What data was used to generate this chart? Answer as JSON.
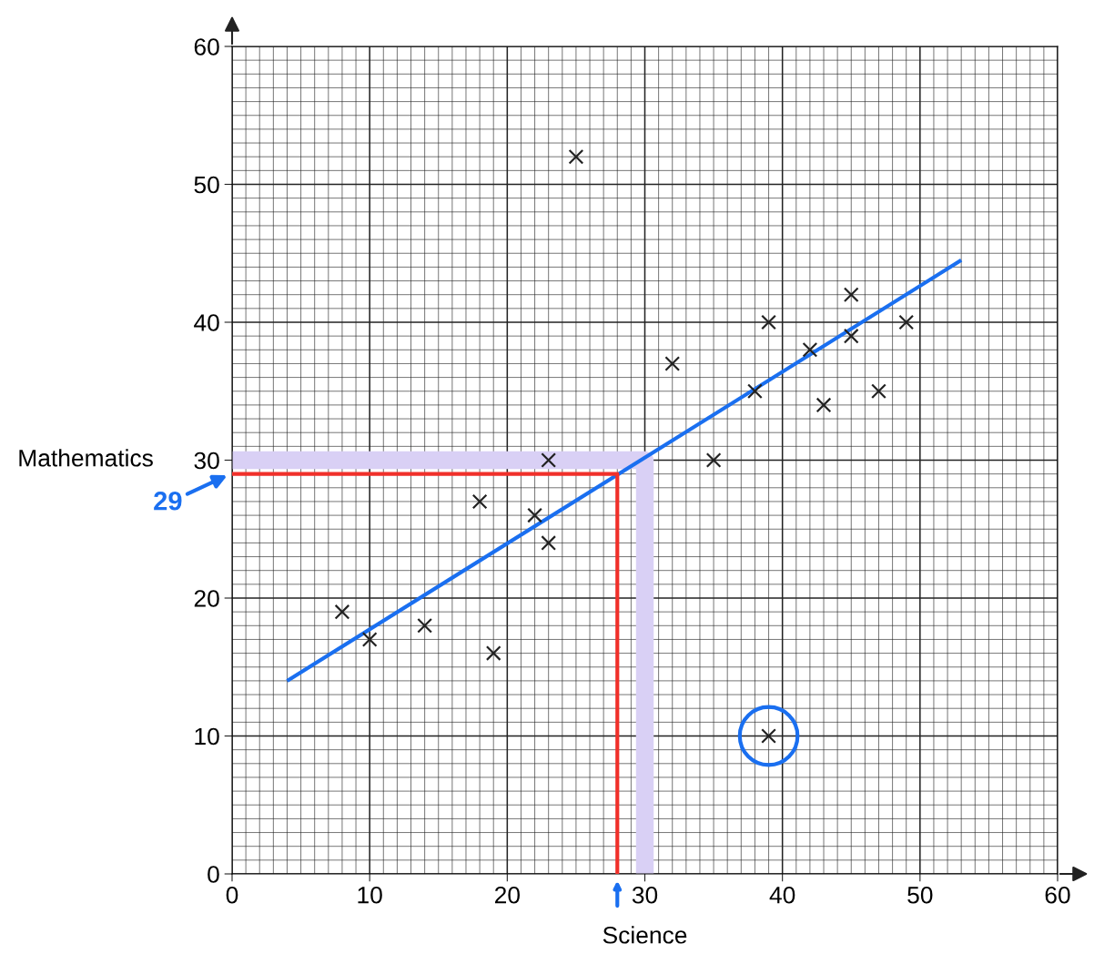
{
  "chart_data": {
    "type": "scatter",
    "xlabel": "Science",
    "ylabel": "Mathematics",
    "xlim": [
      0,
      60
    ],
    "ylim": [
      0,
      60
    ],
    "xticks": [
      0,
      10,
      20,
      30,
      40,
      50,
      60
    ],
    "yticks": [
      0,
      10,
      20,
      30,
      40,
      50,
      60
    ],
    "grid": true,
    "series": [
      {
        "marker": "cross",
        "color": "#222222",
        "x": [
          8,
          10,
          14,
          19,
          18,
          22,
          23,
          23,
          25,
          32,
          35,
          38,
          39,
          39,
          42,
          43,
          45,
          45,
          47,
          49
        ],
        "values": [
          19,
          17,
          18,
          16,
          27,
          26,
          24,
          30,
          52,
          37,
          30,
          35,
          40,
          10,
          38,
          34,
          42,
          39,
          35,
          40
        ]
      },
      {
        "type": "line",
        "color": "#d9d0f5",
        "x": [
          0,
          30,
          30
        ],
        "values": [
          30,
          30,
          0
        ]
      },
      {
        "type": "line",
        "color": "#1a6ff0",
        "x": [
          4,
          53
        ],
        "values": [
          14,
          44.5
        ]
      },
      {
        "type": "line",
        "color": "#f0302a",
        "x": [
          0,
          28,
          28
        ],
        "values": [
          29,
          29,
          0
        ]
      }
    ],
    "annotations": [
      "29"
    ]
  }
}
